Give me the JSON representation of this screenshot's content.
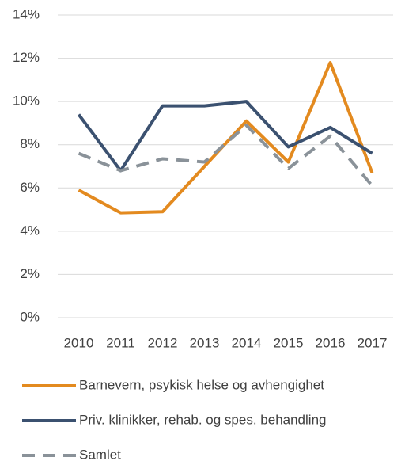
{
  "chart_data": {
    "type": "line",
    "categories": [
      "2010",
      "2011",
      "2012",
      "2013",
      "2014",
      "2015",
      "2016",
      "2017"
    ],
    "series": [
      {
        "name": "Barnevern, psykisk helse og avhengighet",
        "color": "#e38a1f",
        "dashed": false,
        "values": [
          5.9,
          4.85,
          4.9,
          7.0,
          9.1,
          7.2,
          11.8,
          6.7
        ]
      },
      {
        "name": "Priv. klinikker, rehab. og spes. behandling",
        "color": "#3b5170",
        "dashed": false,
        "values": [
          9.4,
          6.8,
          9.8,
          9.8,
          10.0,
          7.9,
          8.8,
          7.6
        ]
      },
      {
        "name": "Samlet",
        "color": "#8a9299",
        "dashed": true,
        "values": [
          7.6,
          6.8,
          7.35,
          7.2,
          8.9,
          6.9,
          8.4,
          6.1
        ]
      }
    ],
    "ylim": [
      0,
      14
    ],
    "yticks": [
      {
        "value": 0,
        "label": "0%"
      },
      {
        "value": 2,
        "label": "2%"
      },
      {
        "value": 4,
        "label": "4%"
      },
      {
        "value": 6,
        "label": "6%"
      },
      {
        "value": 8,
        "label": "8%"
      },
      {
        "value": 10,
        "label": "10%"
      },
      {
        "value": 12,
        "label": "12%"
      },
      {
        "value": 14,
        "label": "14%"
      }
    ],
    "grid": true
  }
}
